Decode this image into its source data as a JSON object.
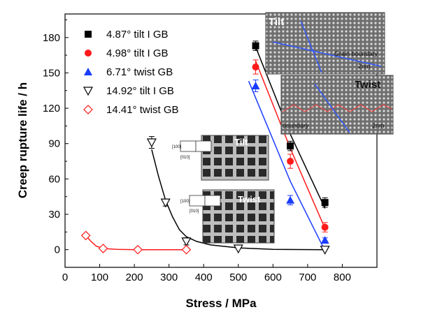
{
  "chart_data": {
    "type": "scatter",
    "xlabel": "Stress / MPa",
    "ylabel": "Creep rupture life / h",
    "xlim": [
      0,
      900
    ],
    "ylim": [
      -15,
      200
    ],
    "xticks": [
      0,
      100,
      200,
      300,
      400,
      500,
      600,
      700,
      800
    ],
    "yticks": [
      0,
      30,
      60,
      90,
      120,
      150,
      180
    ],
    "legend_position": "top-left",
    "series": [
      {
        "name": "4.87° tilt I GB",
        "marker": "square",
        "color": "#000000",
        "points": [
          [
            550,
            173
          ],
          [
            650,
            88
          ],
          [
            750,
            40
          ]
        ],
        "errors": [
          4,
          4,
          4
        ],
        "fit": [
          [
            550,
            172
          ],
          [
            650,
            98
          ],
          [
            750,
            35
          ]
        ]
      },
      {
        "name": "4.98° tilt I GB",
        "marker": "circle",
        "color": "#ff1a1a",
        "points": [
          [
            550,
            155
          ],
          [
            650,
            75
          ],
          [
            750,
            19
          ]
        ],
        "errors": [
          6,
          6,
          4
        ],
        "fit": [
          [
            550,
            160
          ],
          [
            650,
            86
          ],
          [
            750,
            18
          ]
        ]
      },
      {
        "name": "6.71° twist GB",
        "marker": "triangle-up",
        "color": "#1a3cff",
        "points": [
          [
            550,
            139
          ],
          [
            650,
            42
          ],
          [
            750,
            8
          ]
        ],
        "errors": [
          5,
          4,
          2
        ],
        "fit": [
          [
            530,
            143
          ],
          [
            650,
            58
          ],
          [
            745,
            2
          ]
        ]
      },
      {
        "name": "14.92° tilt I GB",
        "marker": "triangle-down-open",
        "color": "#000000",
        "points": [
          [
            250,
            91
          ],
          [
            290,
            40
          ],
          [
            350,
            7
          ],
          [
            500,
            1
          ],
          [
            750,
            0
          ]
        ],
        "errors": [
          5,
          3,
          3,
          0,
          0
        ],
        "fit": [
          [
            250,
            85
          ],
          [
            270,
            62
          ],
          [
            290,
            42
          ],
          [
            310,
            28
          ],
          [
            330,
            17
          ],
          [
            350,
            11
          ],
          [
            380,
            7
          ],
          [
            420,
            4
          ],
          [
            500,
            1.5
          ],
          [
            600,
            0.3
          ],
          [
            750,
            0
          ]
        ]
      },
      {
        "name": "14.41° twist GB",
        "marker": "diamond-open",
        "color": "#ff1a1a",
        "points": [
          [
            60,
            12
          ],
          [
            110,
            1
          ],
          [
            210,
            0
          ],
          [
            350,
            0
          ]
        ],
        "errors": [
          0,
          0,
          0,
          0
        ],
        "fit": [
          [
            60,
            12
          ],
          [
            75,
            7
          ],
          [
            90,
            3
          ],
          [
            110,
            1
          ],
          [
            150,
            0.2
          ],
          [
            210,
            0
          ],
          [
            350,
            0
          ]
        ]
      }
    ],
    "insets": [
      {
        "label": "Tilt",
        "sublabels": [
          "Grain boundary",
          "2nm"
        ]
      },
      {
        "label": "Twist",
        "sublabels": [
          "boundary",
          "2nm"
        ]
      },
      {
        "label": "Tilt",
        "sublabels": [
          "[100]",
          "[010]"
        ]
      },
      {
        "label": "Twist",
        "sublabels": [
          "[100]",
          "[010]"
        ]
      }
    ]
  }
}
